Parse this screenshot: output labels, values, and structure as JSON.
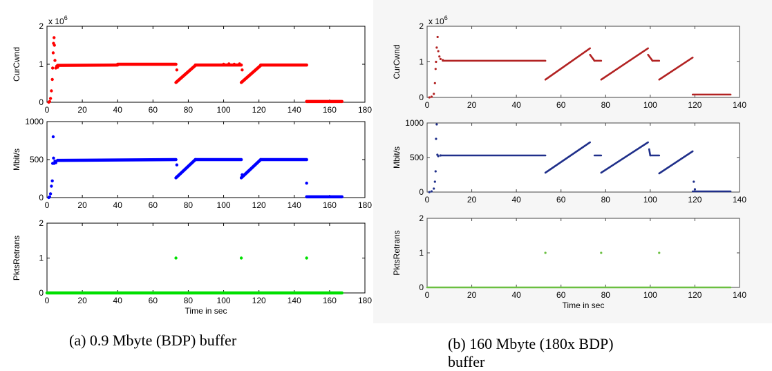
{
  "figures": [
    {
      "caption": "(a) 0.9 Mbyte (BDP) buffer",
      "caption_lines": [
        "(a) 0.9 Mbyte (BDP) buffer"
      ],
      "background": "#ffffff",
      "axis_color": "#000000"
    },
    {
      "caption": "(b) 160 Mbyte (180x BDP) buffer",
      "caption_lines": [
        "(b) 160 Mbyte (180x BDP)",
        "buffer"
      ],
      "background": "#f6f6f6",
      "axis_color": "#444444"
    }
  ],
  "chart_data": [
    {
      "type": "scatter",
      "figure": 0,
      "row": 0,
      "ylabel": "CurCwnd",
      "xlabel": "",
      "exponent_label": "x 10^6",
      "xlim": [
        0,
        180
      ],
      "ylim": [
        0,
        2
      ],
      "xticks": [
        0,
        20,
        40,
        60,
        80,
        100,
        120,
        140,
        160,
        180
      ],
      "yticks": [
        0,
        1,
        2
      ],
      "color": "#ff0000",
      "series": [
        {
          "points": [
            [
              1,
              0
            ],
            [
              1.5,
              0.02
            ],
            [
              2,
              0.1
            ],
            [
              2.5,
              0.3
            ],
            [
              3,
              0.6
            ],
            [
              3.2,
              0.9
            ],
            [
              3.5,
              1.3
            ],
            [
              3.7,
              1.55
            ],
            [
              4,
              1.7
            ],
            [
              4.2,
              1.5
            ],
            [
              4.5,
              1.1
            ],
            [
              5,
              0.9
            ],
            [
              5.5,
              0.95
            ],
            [
              6,
              0.92
            ]
          ]
        },
        {
          "segments": [
            [
              [
                6,
                0.97
              ],
              [
                40,
                0.98
              ]
            ],
            [
              [
                40,
                1.0
              ],
              [
                73,
                1.0
              ]
            ],
            [
              [
                73,
                0.52
              ],
              [
                84,
                0.97
              ]
            ],
            [
              [
                84,
                0.98
              ],
              [
                110,
                0.98
              ]
            ],
            [
              [
                110,
                0.52
              ],
              [
                121,
                0.97
              ]
            ],
            [
              [
                121,
                0.98
              ],
              [
                147,
                0.98
              ]
            ],
            [
              [
                147,
                0.02
              ],
              [
                167,
                0.02
              ]
            ]
          ]
        },
        {
          "points": [
            [
              100,
              1.0
            ],
            [
              103,
              1.01
            ],
            [
              106,
              1.0
            ],
            [
              109,
              1.01
            ],
            [
              73.5,
              0.85
            ],
            [
              110.5,
              0.85
            ]
          ]
        }
      ]
    },
    {
      "type": "scatter",
      "figure": 0,
      "row": 1,
      "ylabel": "Mbit/s",
      "xlabel": "",
      "xlim": [
        0,
        180
      ],
      "ylim": [
        0,
        1000
      ],
      "xticks": [
        0,
        20,
        40,
        60,
        80,
        100,
        120,
        140,
        160,
        180
      ],
      "yticks": [
        0,
        500,
        1000
      ],
      "color": "#0000ff",
      "series": [
        {
          "points": [
            [
              1,
              0
            ],
            [
              1.5,
              10
            ],
            [
              2,
              50
            ],
            [
              2.5,
              150
            ],
            [
              3,
              220
            ],
            [
              3.2,
              450
            ],
            [
              3.5,
              800
            ],
            [
              3.7,
              520
            ],
            [
              4,
              450
            ],
            [
              4.5,
              480
            ],
            [
              5,
              460
            ],
            [
              6,
              490
            ]
          ]
        },
        {
          "segments": [
            [
              [
                6,
                490
              ],
              [
                73,
                500
              ]
            ],
            [
              [
                73,
                260
              ],
              [
                84,
                500
              ]
            ],
            [
              [
                84,
                500
              ],
              [
                110,
                500
              ]
            ],
            [
              [
                110,
                260
              ],
              [
                121,
                500
              ]
            ],
            [
              [
                121,
                500
              ],
              [
                147,
                500
              ]
            ],
            [
              [
                147,
                10
              ],
              [
                167,
                10
              ]
            ]
          ]
        },
        {
          "points": [
            [
              73.5,
              430
            ],
            [
              110.5,
              300
            ],
            [
              147,
              190
            ]
          ]
        }
      ]
    },
    {
      "type": "scatter",
      "figure": 0,
      "row": 2,
      "ylabel": "PktsRetrans",
      "xlabel": "Time in sec",
      "xlim": [
        0,
        180
      ],
      "ylim": [
        0,
        2
      ],
      "xticks": [
        0,
        20,
        40,
        60,
        80,
        100,
        120,
        140,
        160,
        180
      ],
      "yticks": [
        0,
        1,
        2
      ],
      "color": "#00e000",
      "series": [
        {
          "segments": [
            [
              [
                0,
                0
              ],
              [
                167,
                0
              ]
            ]
          ]
        },
        {
          "points": [
            [
              73,
              1
            ],
            [
              110,
              1
            ],
            [
              147,
              1
            ]
          ]
        }
      ]
    },
    {
      "type": "scatter",
      "figure": 1,
      "row": 0,
      "ylabel": "CurCwnd",
      "xlabel": "",
      "exponent_label": "x 10^6",
      "xlim": [
        0,
        140
      ],
      "ylim": [
        0,
        2
      ],
      "xticks": [
        0,
        20,
        40,
        60,
        80,
        100,
        120,
        140
      ],
      "yticks": [
        0,
        1,
        2
      ],
      "color": "#b22222",
      "series": [
        {
          "points": [
            [
              1,
              0
            ],
            [
              2,
              0.02
            ],
            [
              3,
              0.1
            ],
            [
              3.5,
              0.4
            ],
            [
              3.8,
              0.8
            ],
            [
              4,
              1.0
            ],
            [
              4.3,
              1.4
            ],
            [
              4.7,
              1.7
            ],
            [
              5,
              1.3
            ],
            [
              5.5,
              1.15
            ],
            [
              6,
              1.08
            ],
            [
              7,
              1.05
            ]
          ]
        },
        {
          "segments": [
            [
              [
                7,
                1.03
              ],
              [
                53,
                1.03
              ]
            ],
            [
              [
                53,
                0.5
              ],
              [
                73,
                1.38
              ]
            ],
            [
              [
                73,
                1.2
              ],
              [
                75,
                1.03
              ]
            ],
            [
              [
                75,
                1.03
              ],
              [
                78,
                1.03
              ]
            ],
            [
              [
                78,
                0.5
              ],
              [
                99,
                1.38
              ]
            ],
            [
              [
                99,
                1.2
              ],
              [
                101,
                1.03
              ]
            ],
            [
              [
                101,
                1.03
              ],
              [
                104,
                1.03
              ]
            ],
            [
              [
                104,
                0.5
              ],
              [
                119,
                1.12
              ]
            ],
            [
              [
                119,
                0.08
              ],
              [
                136,
                0.08
              ]
            ]
          ]
        }
      ]
    },
    {
      "type": "scatter",
      "figure": 1,
      "row": 1,
      "ylabel": "Mbit/s",
      "xlabel": "",
      "xlim": [
        0,
        140
      ],
      "ylim": [
        0,
        1000
      ],
      "xticks": [
        0,
        20,
        40,
        60,
        80,
        100,
        120,
        140
      ],
      "yticks": [
        0,
        500,
        1000
      ],
      "color": "#1f2f8a",
      "series": [
        {
          "points": [
            [
              1,
              0
            ],
            [
              2,
              10
            ],
            [
              3,
              50
            ],
            [
              3.5,
              150
            ],
            [
              3.8,
              300
            ],
            [
              4,
              770
            ],
            [
              4.3,
              980
            ],
            [
              4.6,
              540
            ],
            [
              5,
              520
            ],
            [
              6,
              530
            ]
          ]
        },
        {
          "segments": [
            [
              [
                6,
                530
              ],
              [
                53,
                530
              ]
            ],
            [
              [
                53,
                280
              ],
              [
                73,
                720
              ]
            ],
            [
              [
                75,
                530
              ],
              [
                78,
                530
              ]
            ],
            [
              [
                78,
                280
              ],
              [
                99,
                720
              ]
            ],
            [
              [
                99.5,
                620
              ],
              [
                100,
                530
              ]
            ],
            [
              [
                100,
                530
              ],
              [
                104,
                530
              ]
            ],
            [
              [
                104,
                270
              ],
              [
                119,
                590
              ]
            ],
            [
              [
                119,
                10
              ],
              [
                136,
                10
              ]
            ]
          ]
        },
        {
          "points": [
            [
              119.5,
              150
            ],
            [
              120,
              40
            ]
          ]
        }
      ]
    },
    {
      "type": "scatter",
      "figure": 1,
      "row": 2,
      "ylabel": "PktsRetrans",
      "xlabel": "Time in sec",
      "xlim": [
        0,
        140
      ],
      "ylim": [
        0,
        2
      ],
      "xticks": [
        0,
        20,
        40,
        60,
        80,
        100,
        120,
        140
      ],
      "yticks": [
        0,
        1,
        2
      ],
      "color": "#6abf40",
      "series": [
        {
          "segments": [
            [
              [
                0,
                0
              ],
              [
                136,
                0
              ]
            ]
          ]
        },
        {
          "points": [
            [
              53,
              1
            ],
            [
              78,
              1
            ],
            [
              104,
              1
            ]
          ]
        }
      ]
    }
  ]
}
